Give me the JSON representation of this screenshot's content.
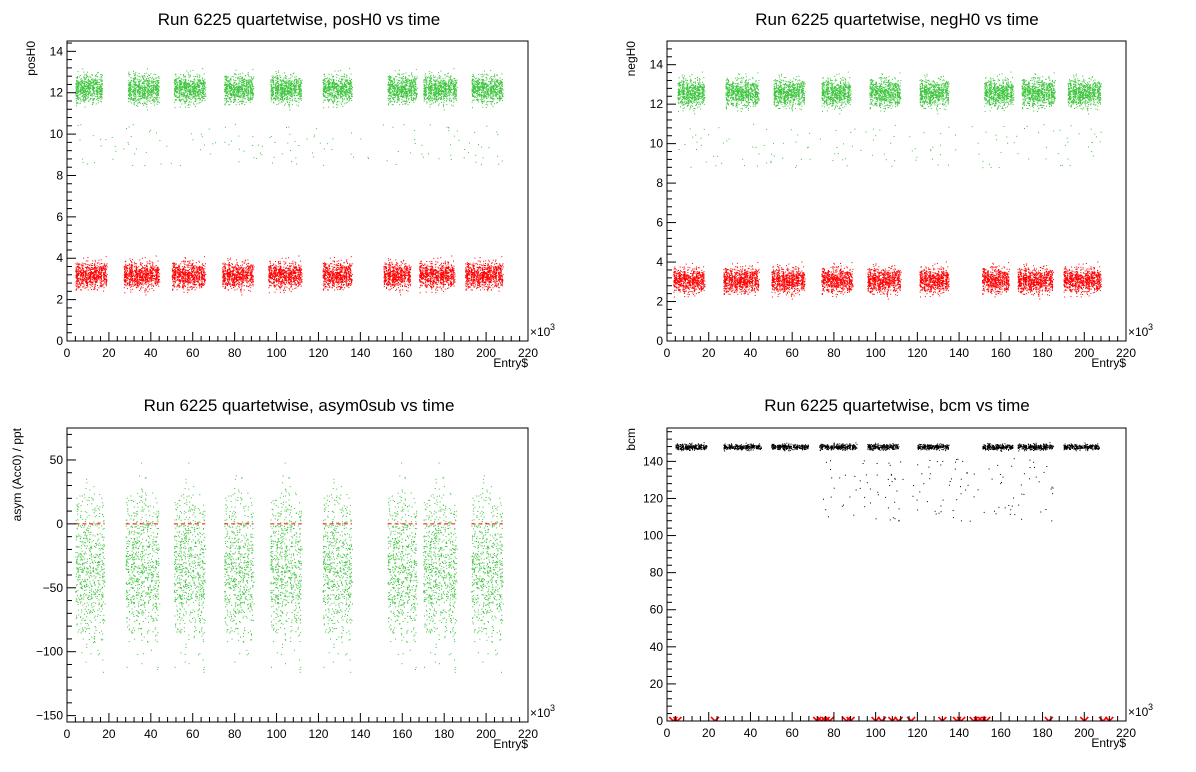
{
  "chart_data": [
    {
      "type": "scatter",
      "title": "Run 6225 quartetwise, posH0 vs time",
      "xlabel": "Entry$",
      "ylabel": "posH0",
      "x_multiplier": "×10",
      "x_multiplier_exp": "3",
      "xlim": [
        0,
        220
      ],
      "ylim": [
        0,
        14.5
      ],
      "xticks": [
        0,
        20,
        40,
        60,
        80,
        100,
        120,
        140,
        160,
        180,
        200,
        220
      ],
      "yticks": [
        0,
        2,
        4,
        6,
        8,
        10,
        12,
        14
      ],
      "series": [
        {
          "color": "#3cc53c",
          "kind": "bands",
          "blocks": [
            [
              4,
              17
            ],
            [
              29,
              44
            ],
            [
              51,
              66
            ],
            [
              75,
              89
            ],
            [
              97,
              112
            ],
            [
              122,
              136
            ],
            [
              153,
              167
            ],
            [
              170,
              186
            ],
            [
              193,
              208
            ]
          ],
          "center": 12.2,
          "spread": 0.85
        },
        {
          "color": "#3cc53c",
          "kind": "sparse",
          "x_range": [
            4,
            208
          ],
          "y_range": [
            8.5,
            10.5
          ]
        },
        {
          "color": "#ff0000",
          "kind": "bands",
          "blocks": [
            [
              4,
              19
            ],
            [
              27,
              44
            ],
            [
              50,
              66
            ],
            [
              74,
              89
            ],
            [
              96,
              112
            ],
            [
              122,
              136
            ],
            [
              151,
              164
            ],
            [
              168,
              185
            ],
            [
              190,
              208
            ]
          ],
          "center": 3.2,
          "spread": 0.8
        }
      ]
    },
    {
      "type": "scatter",
      "title": "Run 6225 quartetwise, negH0 vs time",
      "xlabel": "Entry$",
      "ylabel": "negH0",
      "x_multiplier": "×10",
      "x_multiplier_exp": "3",
      "xlim": [
        0,
        220
      ],
      "ylim": [
        0,
        15.2
      ],
      "xticks": [
        0,
        20,
        40,
        60,
        80,
        100,
        120,
        140,
        160,
        180,
        200,
        220
      ],
      "yticks": [
        0,
        2,
        4,
        6,
        8,
        10,
        12,
        14
      ],
      "series": [
        {
          "color": "#3cc53c",
          "kind": "bands",
          "blocks": [
            [
              5,
              18
            ],
            [
              28,
              44
            ],
            [
              51,
              66
            ],
            [
              74,
              88
            ],
            [
              97,
              112
            ],
            [
              121,
              135
            ],
            [
              152,
              166
            ],
            [
              170,
              186
            ],
            [
              192,
              208
            ]
          ],
          "center": 12.6,
          "spread": 0.9
        },
        {
          "color": "#3cc53c",
          "kind": "sparse",
          "x_range": [
            5,
            208
          ],
          "y_range": [
            8.8,
            11
          ]
        },
        {
          "color": "#ff0000",
          "kind": "bands",
          "blocks": [
            [
              3,
              18
            ],
            [
              27,
              44
            ],
            [
              50,
              66
            ],
            [
              74,
              89
            ],
            [
              96,
              112
            ],
            [
              121,
              135
            ],
            [
              151,
              164
            ],
            [
              168,
              185
            ],
            [
              190,
              208
            ]
          ],
          "center": 3.1,
          "spread": 0.8
        }
      ]
    },
    {
      "type": "scatter",
      "title": "Run 6225 quartetwise, asym0sub vs time",
      "xlabel": "Entry$",
      "ylabel": "asym (Acc0) / ppt",
      "x_multiplier": "×10",
      "x_multiplier_exp": "3",
      "xlim": [
        0,
        220
      ],
      "ylim": [
        -155,
        75
      ],
      "xticks": [
        0,
        20,
        40,
        60,
        80,
        100,
        120,
        140,
        160,
        180,
        200,
        220
      ],
      "yticks": [
        -150,
        -100,
        -50,
        0,
        50
      ],
      "series": [
        {
          "color": "#3cc53c",
          "kind": "bands",
          "blocks": [
            [
              4,
              18
            ],
            [
              28,
              44
            ],
            [
              51,
              66
            ],
            [
              75,
              89
            ],
            [
              97,
              112
            ],
            [
              122,
              136
            ],
            [
              153,
              167
            ],
            [
              170,
              186
            ],
            [
              193,
              208
            ]
          ],
          "center": -35,
          "spread": 75
        },
        {
          "color": "#ff0000",
          "kind": "dashed-line",
          "y": 0,
          "blocks": [
            [
              4,
              18
            ],
            [
              28,
              44
            ],
            [
              51,
              66
            ],
            [
              75,
              89
            ],
            [
              97,
              112
            ],
            [
              122,
              136
            ],
            [
              153,
              167
            ],
            [
              170,
              186
            ],
            [
              193,
              208
            ]
          ]
        }
      ]
    },
    {
      "type": "scatter",
      "title": "Run 6225 quartetwise, bcm vs time",
      "xlabel": "Entry$",
      "ylabel": "bcm",
      "x_multiplier": "×10",
      "x_multiplier_exp": "3",
      "xlim": [
        0,
        220
      ],
      "ylim": [
        0,
        158
      ],
      "xticks": [
        0,
        20,
        40,
        60,
        80,
        100,
        120,
        140,
        160,
        180,
        200,
        220
      ],
      "yticks": [
        0,
        20,
        40,
        60,
        80,
        100,
        120,
        140
      ],
      "series": [
        {
          "color": "#000000",
          "kind": "bands",
          "blocks": [
            [
              4,
              19
            ],
            [
              27,
              45
            ],
            [
              50,
              68
            ],
            [
              73,
              91
            ],
            [
              96,
              111
            ],
            [
              120,
              135
            ],
            [
              151,
              166
            ],
            [
              168,
              185
            ],
            [
              190,
              207
            ]
          ],
          "center": 148,
          "spread": 2
        },
        {
          "color": "#000000",
          "kind": "sparse",
          "x_range": [
            74,
            185
          ],
          "y_range": [
            108,
            142
          ]
        },
        {
          "color": "#ff0000",
          "kind": "markers",
          "x": [
            3,
            5,
            23,
            72,
            74,
            76,
            78,
            86,
            88,
            100,
            103,
            108,
            111,
            117,
            132,
            139,
            141,
            147,
            149,
            151,
            153,
            183,
            200,
            209,
            212
          ],
          "y": 0
        }
      ]
    }
  ]
}
